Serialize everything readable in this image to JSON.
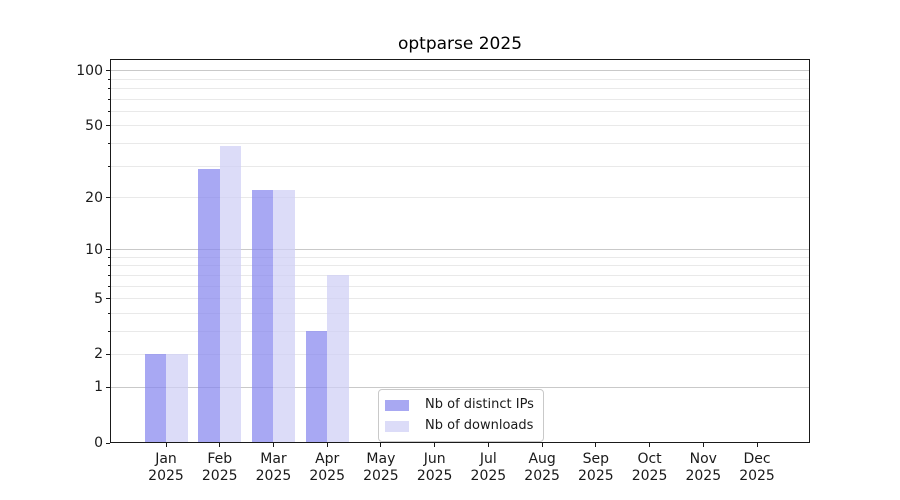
{
  "chart_data": {
    "type": "bar",
    "title": "optparse 2025",
    "categories": [
      "Jan 2025",
      "Feb 2025",
      "Mar 2025",
      "Apr 2025",
      "May 2025",
      "Jun 2025",
      "Jul 2025",
      "Aug 2025",
      "Sep 2025",
      "Oct 2025",
      "Nov 2025",
      "Dec 2025"
    ],
    "series": [
      {
        "name": "Nb of distinct IPs",
        "values": [
          2,
          29,
          22,
          3,
          0,
          0,
          0,
          0,
          0,
          0,
          0,
          0
        ],
        "fill": "rgba(134,134,238,0.72)",
        "legend_color": "#a8a8f2"
      },
      {
        "name": "Nb of downloads",
        "values": [
          2,
          39,
          22,
          7,
          0,
          0,
          0,
          0,
          0,
          0,
          0,
          0
        ],
        "fill": "rgba(206,206,245,0.72)",
        "legend_color": "#dcdcf8"
      }
    ],
    "y_axis": {
      "scale": "log1p",
      "min": 0,
      "max": 116,
      "labeled_ticks": [
        0,
        1,
        2,
        5,
        10,
        20,
        50,
        100
      ],
      "major_gridlines": [
        1,
        10,
        100
      ],
      "minor_gridlines": [
        2,
        3,
        4,
        5,
        6,
        7,
        8,
        9,
        20,
        30,
        40,
        50,
        60,
        70,
        80,
        90
      ]
    },
    "legend": {
      "position": "lower-center"
    },
    "grid": true,
    "colors": {
      "minor_grid": "#e9e9e9",
      "major_grid": "#c9c9c9",
      "spine": "#1a1a1a",
      "text": "#1a1a1a",
      "legend_border": "#c9c9c9",
      "background": "#ffffff"
    }
  }
}
